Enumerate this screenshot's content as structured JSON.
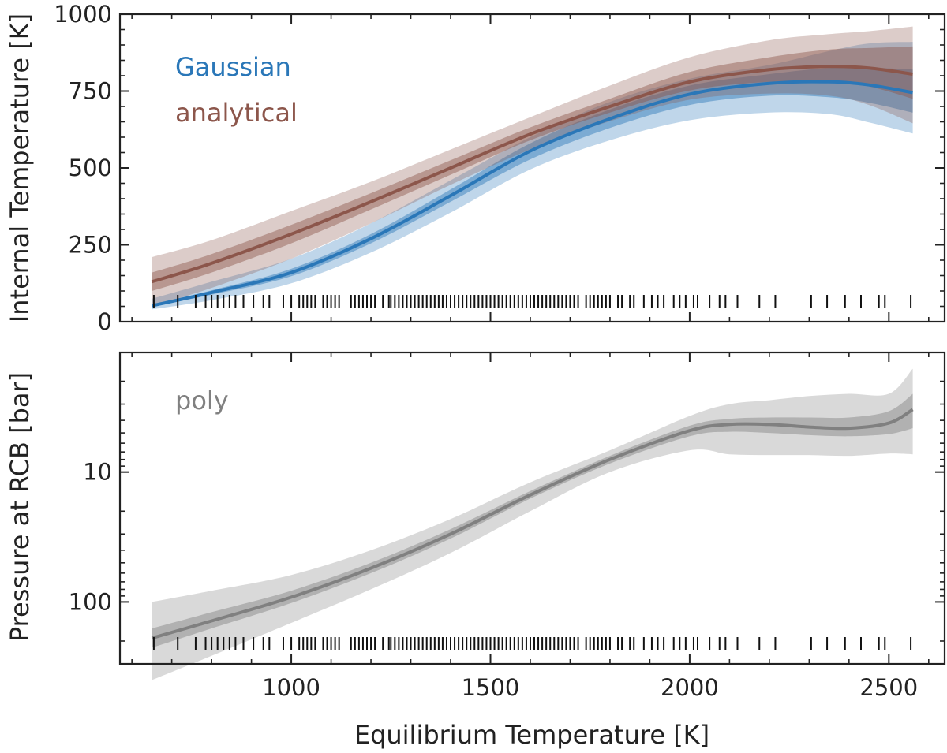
{
  "chart_data": [
    {
      "type": "line",
      "panel": "top",
      "title": "",
      "xlabel": "",
      "ylabel": "Internal Temperature [K]",
      "xlim": [
        570,
        2640
      ],
      "ylim": [
        0,
        1000
      ],
      "xticks": [
        1000,
        1500,
        2000,
        2500
      ],
      "yticks": [
        0,
        250,
        500,
        750,
        1000
      ],
      "ytick_labels": [
        "0",
        "250",
        "500",
        "750",
        "1000"
      ],
      "grid": false,
      "legend": "top-left",
      "series": [
        {
          "name": "Gaussian",
          "color": "#2a77b8",
          "x": [
            650,
            800,
            1000,
            1200,
            1400,
            1600,
            1800,
            2000,
            2200,
            2350,
            2450,
            2560
          ],
          "y": [
            52,
            95,
            160,
            270,
            410,
            555,
            660,
            740,
            775,
            780,
            770,
            745
          ],
          "inner_low": [
            50,
            88,
            148,
            255,
            390,
            528,
            630,
            705,
            735,
            730,
            712,
            680
          ],
          "inner_high": [
            55,
            102,
            172,
            285,
            430,
            580,
            690,
            768,
            805,
            825,
            826,
            820
          ],
          "outer_low": [
            40,
            70,
            125,
            225,
            355,
            495,
            590,
            655,
            680,
            675,
            648,
            612
          ],
          "outer_high": [
            75,
            130,
            205,
            320,
            460,
            600,
            715,
            790,
            835,
            880,
            905,
            910
          ]
        },
        {
          "name": "analytical",
          "color": "#8c564b",
          "x": [
            650,
            800,
            1000,
            1200,
            1400,
            1600,
            1800,
            2000,
            2200,
            2350,
            2450,
            2560
          ],
          "y": [
            130,
            190,
            285,
            390,
            500,
            610,
            700,
            780,
            820,
            830,
            825,
            805
          ],
          "inner_low": [
            100,
            160,
            255,
            365,
            478,
            590,
            680,
            752,
            780,
            780,
            765,
            725
          ],
          "inner_high": [
            160,
            220,
            315,
            418,
            525,
            632,
            725,
            812,
            860,
            885,
            890,
            895
          ],
          "outer_low": [
            50,
            110,
            205,
            320,
            445,
            560,
            652,
            722,
            742,
            735,
            705,
            645
          ],
          "outer_high": [
            210,
            265,
            360,
            455,
            560,
            665,
            768,
            860,
            915,
            935,
            945,
            960
          ]
        }
      ],
      "rug_x": [
        655,
        715,
        760,
        785,
        800,
        815,
        830,
        845,
        860,
        880,
        905,
        930,
        945,
        980,
        1000,
        1020,
        1030,
        1040,
        1050,
        1060,
        1080,
        1090,
        1100,
        1110,
        1120,
        1150,
        1160,
        1170,
        1180,
        1190,
        1200,
        1210,
        1230,
        1245,
        1250,
        1260,
        1270,
        1280,
        1290,
        1300,
        1310,
        1320,
        1330,
        1340,
        1350,
        1360,
        1370,
        1380,
        1390,
        1400,
        1410,
        1420,
        1430,
        1440,
        1450,
        1460,
        1470,
        1480,
        1490,
        1500,
        1510,
        1520,
        1530,
        1540,
        1550,
        1560,
        1570,
        1580,
        1590,
        1600,
        1610,
        1620,
        1630,
        1640,
        1650,
        1660,
        1670,
        1680,
        1690,
        1700,
        1710,
        1720,
        1740,
        1750,
        1760,
        1770,
        1780,
        1790,
        1800,
        1820,
        1830,
        1850,
        1860,
        1885,
        1905,
        1920,
        1935,
        1960,
        1975,
        1990,
        2010,
        2020,
        2050,
        2075,
        2090,
        2120,
        2175,
        2215,
        2305,
        2345,
        2390,
        2430,
        2475,
        2490,
        2555
      ]
    },
    {
      "type": "line",
      "panel": "bottom",
      "title": "",
      "xlabel": "Equilibrium Temperature [K]",
      "ylabel": "Pressure at RCB [bar]",
      "xlim": [
        570,
        2640
      ],
      "ylim": [
        300,
        1.2
      ],
      "yscale": "log",
      "inverted": true,
      "xticks": [
        1000,
        1500,
        2000,
        2500
      ],
      "xtick_labels": [
        "1000",
        "1500",
        "2000",
        "2500"
      ],
      "yticks": [
        10,
        100
      ],
      "ytick_labels": [
        "10",
        "100"
      ],
      "grid": false,
      "legend": "top-left",
      "series": [
        {
          "name": "poly",
          "color": "#808080",
          "x": [
            650,
            800,
            1000,
            1200,
            1400,
            1600,
            1800,
            2000,
            2100,
            2200,
            2300,
            2400,
            2500,
            2560
          ],
          "y": [
            190,
            140,
            92,
            55,
            30,
            15,
            8,
            4.8,
            4.3,
            4.3,
            4.5,
            4.6,
            4.2,
            3.3
          ],
          "inner_low": [
            160,
            120,
            82,
            50,
            27.5,
            14,
            7.5,
            4.4,
            3.9,
            3.8,
            3.8,
            3.8,
            3.4,
            2.5
          ],
          "inner_high": [
            225,
            160,
            102,
            60,
            32.5,
            16,
            8.6,
            5.3,
            4.9,
            5.0,
            5.2,
            5.3,
            5.1,
            4.6
          ],
          "outer_low": [
            100,
            82,
            62,
            40,
            23,
            12,
            6.8,
            3.7,
            3.0,
            2.8,
            2.6,
            2.5,
            2.5,
            1.6
          ],
          "outer_high": [
            400,
            260,
            145,
            80,
            42,
            20,
            10,
            6.8,
            7.3,
            7.4,
            7.4,
            7.5,
            7.2,
            7.3
          ]
        }
      ],
      "rug_x": [
        655,
        715,
        760,
        785,
        800,
        815,
        830,
        845,
        860,
        880,
        905,
        930,
        945,
        980,
        1000,
        1020,
        1030,
        1040,
        1050,
        1060,
        1080,
        1090,
        1100,
        1110,
        1120,
        1150,
        1160,
        1170,
        1180,
        1190,
        1200,
        1210,
        1230,
        1245,
        1250,
        1260,
        1270,
        1280,
        1290,
        1300,
        1310,
        1320,
        1330,
        1340,
        1350,
        1360,
        1370,
        1380,
        1390,
        1400,
        1410,
        1420,
        1430,
        1440,
        1450,
        1460,
        1470,
        1480,
        1490,
        1500,
        1510,
        1520,
        1530,
        1540,
        1550,
        1560,
        1570,
        1580,
        1590,
        1600,
        1610,
        1620,
        1630,
        1640,
        1650,
        1660,
        1670,
        1680,
        1690,
        1700,
        1710,
        1720,
        1740,
        1750,
        1760,
        1770,
        1780,
        1790,
        1800,
        1820,
        1830,
        1850,
        1860,
        1885,
        1905,
        1920,
        1935,
        1960,
        1975,
        1990,
        2010,
        2020,
        2050,
        2075,
        2090,
        2120,
        2175,
        2215,
        2305,
        2345,
        2390,
        2430,
        2475,
        2490,
        2555
      ]
    }
  ]
}
